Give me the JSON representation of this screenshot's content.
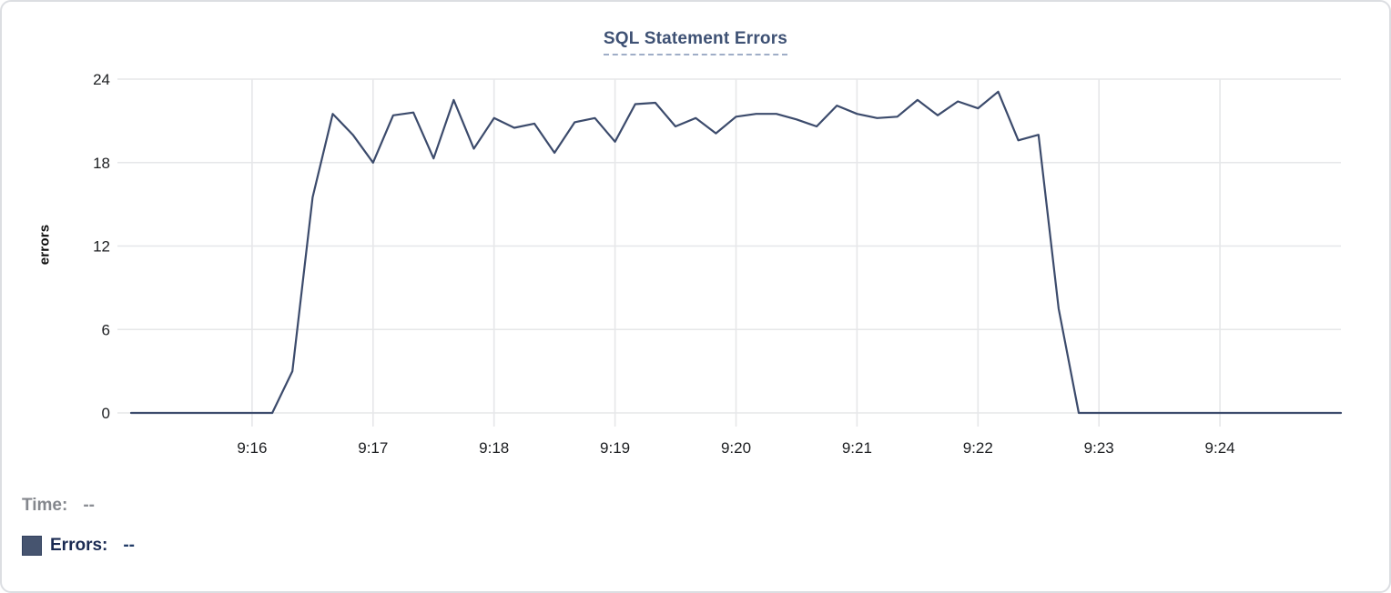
{
  "card": {
    "title": "SQL Statement Errors"
  },
  "legend": {
    "time_label": "Time:",
    "time_value": "--",
    "errors_label": "Errors:",
    "errors_value": "--"
  },
  "colors": {
    "line": "#3c4b6c",
    "swatch": "#46546f",
    "title": "#3e5174",
    "grid": "#e6e7e9",
    "tick_text": "#1c1e21",
    "time_text": "#84878d",
    "errors_text": "#1a2a52"
  },
  "chart_data": {
    "type": "line",
    "title": "SQL Statement Errors",
    "xlabel": "",
    "ylabel": "errors",
    "ylim": [
      0,
      24
    ],
    "y_ticks": [
      0,
      6,
      12,
      18,
      24
    ],
    "x_tick_labels": [
      "9:16",
      "9:17",
      "9:18",
      "9:19",
      "9:20",
      "9:21",
      "9:22",
      "9:23",
      "9:24"
    ],
    "x_range": [
      "9:15:00",
      "9:25:00"
    ],
    "x_interval_seconds": 10,
    "grid": true,
    "legend_position": "bottom-left",
    "x": [
      "9:15:00",
      "9:15:10",
      "9:15:20",
      "9:15:30",
      "9:15:40",
      "9:15:50",
      "9:16:00",
      "9:16:10",
      "9:16:20",
      "9:16:30",
      "9:16:40",
      "9:16:50",
      "9:17:00",
      "9:17:10",
      "9:17:20",
      "9:17:30",
      "9:17:40",
      "9:17:50",
      "9:18:00",
      "9:18:10",
      "9:18:20",
      "9:18:30",
      "9:18:40",
      "9:18:50",
      "9:19:00",
      "9:19:10",
      "9:19:20",
      "9:19:30",
      "9:19:40",
      "9:19:50",
      "9:20:00",
      "9:20:10",
      "9:20:20",
      "9:20:30",
      "9:20:40",
      "9:20:50",
      "9:21:00",
      "9:21:10",
      "9:21:20",
      "9:21:30",
      "9:21:40",
      "9:21:50",
      "9:22:00",
      "9:22:10",
      "9:22:20",
      "9:22:30",
      "9:22:40",
      "9:22:50",
      "9:23:00",
      "9:23:10",
      "9:23:20",
      "9:23:30",
      "9:23:40",
      "9:23:50",
      "9:24:00",
      "9:24:10",
      "9:24:20",
      "9:24:30",
      "9:24:40",
      "9:24:50",
      "9:25:00"
    ],
    "series": [
      {
        "name": "Errors",
        "values": [
          0,
          0,
          0,
          0,
          0,
          0,
          0,
          0,
          3,
          15.5,
          21.5,
          20,
          18,
          21.4,
          21.6,
          18.3,
          22.5,
          19,
          21.2,
          20.5,
          20.8,
          18.7,
          20.9,
          21.2,
          19.5,
          22.2,
          22.3,
          20.6,
          21.2,
          20.1,
          21.3,
          21.5,
          21.5,
          21.1,
          20.6,
          22.1,
          21.5,
          21.2,
          21.3,
          22.5,
          21.4,
          22.4,
          21.9,
          23.1,
          19.6,
          20,
          7.5,
          0,
          0,
          0,
          0,
          0,
          0,
          0,
          0,
          0,
          0,
          0,
          0,
          0,
          0
        ]
      }
    ]
  }
}
